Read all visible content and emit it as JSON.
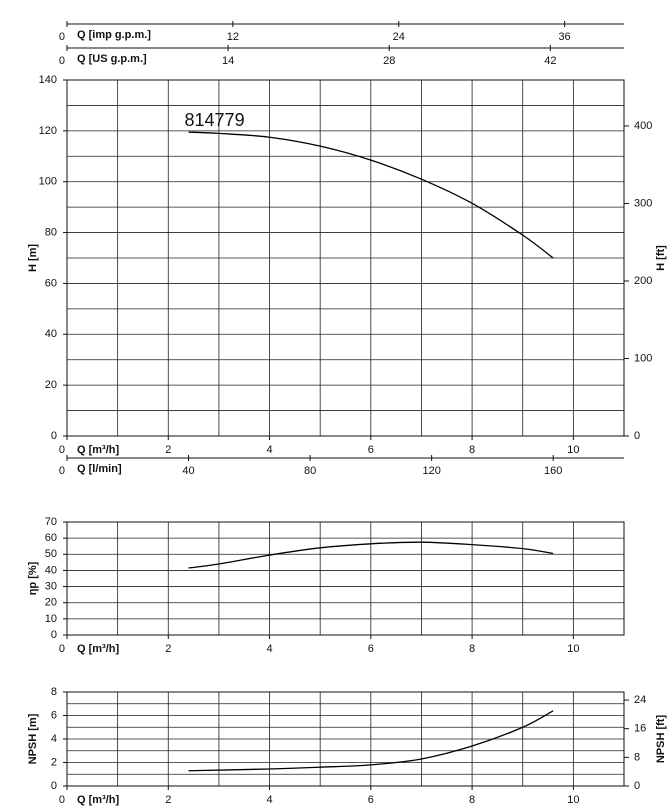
{
  "chart_data": [
    {
      "type": "line",
      "annotation": "814779",
      "xlabel": "Q [m³/h]",
      "ylabel": "H [m]",
      "y2label": "H [ft]",
      "xlim": [
        0,
        11
      ],
      "xticks": [
        0,
        2,
        4,
        6,
        8,
        10
      ],
      "ylim": [
        0,
        140
      ],
      "yticks": [
        0,
        20,
        40,
        60,
        80,
        100,
        120,
        140
      ],
      "y2lim": [
        0,
        459.3
      ],
      "y2ticks": [
        0,
        100,
        200,
        300,
        400
      ],
      "grid": true,
      "xgrid_step": 1,
      "ygrid_step": 10,
      "x": [
        2.4,
        3,
        4,
        5,
        6,
        7,
        8,
        9,
        9.6
      ],
      "series": [
        {
          "color": "#000000",
          "values": [
            119.5,
            119,
            117.5,
            114,
            108.5,
            101,
            91.5,
            79,
            70
          ]
        }
      ],
      "secondary_x_axes": [
        {
          "position": "top",
          "label": "Q [imp g.p.m.]",
          "xlim": [
            0,
            40.3
          ],
          "xticks": [
            0,
            12,
            24,
            36
          ]
        },
        {
          "position": "top",
          "label": "Q [US g.p.m.]",
          "xlim": [
            0,
            48.4
          ],
          "xticks": [
            0,
            14,
            28,
            42
          ]
        },
        {
          "position": "bottom",
          "label": "Q [l/min]",
          "xlim": [
            0,
            183.3
          ],
          "xticks": [
            0,
            40,
            80,
            120,
            160
          ]
        }
      ]
    },
    {
      "type": "line",
      "xlabel": "Q [m³/h]",
      "ylabel": "ηp [%]",
      "xlim": [
        0,
        11
      ],
      "xticks": [
        0,
        2,
        4,
        6,
        8,
        10
      ],
      "ylim": [
        0,
        70
      ],
      "yticks": [
        0,
        10,
        20,
        30,
        40,
        50,
        60,
        70
      ],
      "grid": true,
      "xgrid_step": 1,
      "ygrid_step": 10,
      "x": [
        2.4,
        3,
        4,
        5,
        6,
        7,
        8,
        9,
        9.6
      ],
      "series": [
        {
          "color": "#000000",
          "values": [
            41.5,
            44,
            49.5,
            54,
            56.5,
            57.5,
            56,
            53.5,
            50.5
          ]
        }
      ]
    },
    {
      "type": "line",
      "xlabel": "Q [m³/h]",
      "ylabel": "NPSH [m]",
      "y2label": "NPSH [ft]",
      "xlim": [
        0,
        11
      ],
      "xticks": [
        0,
        2,
        4,
        6,
        8,
        10
      ],
      "ylim": [
        0,
        8
      ],
      "yticks": [
        0,
        2,
        4,
        6,
        8
      ],
      "y2lim": [
        0,
        26.25
      ],
      "y2ticks": [
        0,
        8,
        16,
        24
      ],
      "grid": true,
      "xgrid_step": 1,
      "ygrid_step": 1,
      "x": [
        2.4,
        4,
        5,
        6,
        7,
        8,
        9,
        9.6
      ],
      "series": [
        {
          "color": "#000000",
          "values": [
            1.3,
            1.45,
            1.6,
            1.8,
            2.3,
            3.4,
            5.0,
            6.4
          ]
        }
      ]
    }
  ]
}
